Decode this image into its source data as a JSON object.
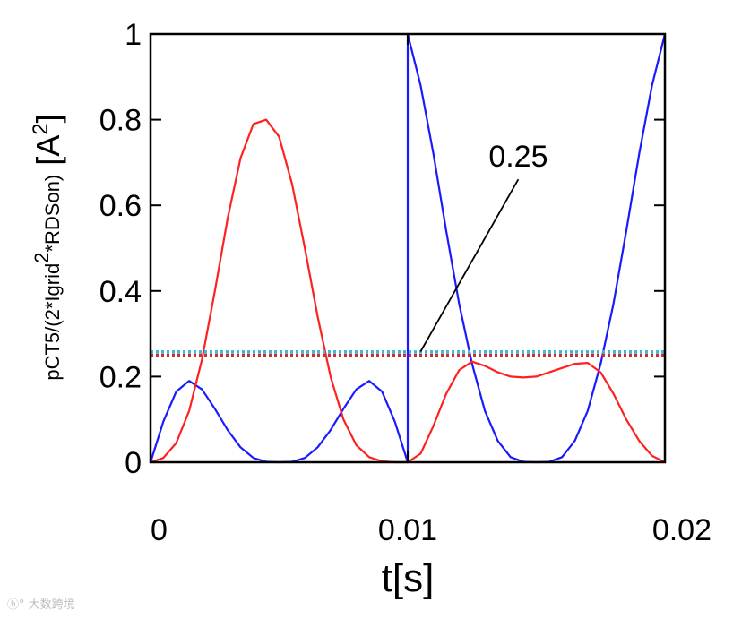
{
  "chart_data": {
    "type": "line",
    "xlabel": "t[s]",
    "ylabel": {
      "prefix": "pCT5/(2*Igrid",
      "superscript": "2",
      "suffix": "*RDSon)",
      "unit_open": " [A",
      "unit_sup": "2",
      "unit_close": "]"
    },
    "xlim": [
      0,
      0.02
    ],
    "ylim": [
      0,
      1
    ],
    "x_ticks": [
      0,
      0.01,
      0.02
    ],
    "x_tick_labels": [
      "0",
      "0.01",
      "0.02"
    ],
    "y_ticks": [
      0,
      0.2,
      0.4,
      0.6,
      0.8,
      1
    ],
    "y_tick_labels": [
      "0",
      "0.2",
      "0.4",
      "0.6",
      "0.8",
      "1"
    ],
    "grid": false,
    "series": [
      {
        "color": "#1a1aff",
        "style": "solid",
        "x": [
          0,
          0.0005,
          0.001,
          0.0015,
          0.002,
          0.0025,
          0.003,
          0.0035,
          0.004,
          0.0045,
          0.005,
          0.0055,
          0.006,
          0.0065,
          0.007,
          0.0075,
          0.008,
          0.0085,
          0.009,
          0.0095,
          0.01,
          0.01,
          0.0105,
          0.011,
          0.0115,
          0.012,
          0.0125,
          0.013,
          0.0135,
          0.014,
          0.0145,
          0.015,
          0.0155,
          0.016,
          0.0165,
          0.017,
          0.0175,
          0.018,
          0.0185,
          0.019,
          0.0195,
          0.02
        ],
        "values": [
          0,
          0.095,
          0.165,
          0.19,
          0.17,
          0.125,
          0.075,
          0.035,
          0.01,
          0.001,
          0,
          0.001,
          0.01,
          0.035,
          0.075,
          0.125,
          0.17,
          0.19,
          0.165,
          0.095,
          0,
          1,
          0.88,
          0.72,
          0.54,
          0.37,
          0.23,
          0.12,
          0.05,
          0.012,
          0.001,
          0,
          0.001,
          0.012,
          0.05,
          0.12,
          0.23,
          0.37,
          0.54,
          0.72,
          0.88,
          1
        ]
      },
      {
        "color": "#ff2020",
        "style": "solid",
        "x": [
          0,
          0.0005,
          0.001,
          0.0015,
          0.002,
          0.0025,
          0.003,
          0.0035,
          0.004,
          0.0045,
          0.005,
          0.0055,
          0.006,
          0.0065,
          0.007,
          0.0075,
          0.008,
          0.0085,
          0.009,
          0.0095,
          0.01,
          0.0105,
          0.011,
          0.0115,
          0.012,
          0.0125,
          0.013,
          0.0135,
          0.014,
          0.0145,
          0.015,
          0.0155,
          0.016,
          0.0165,
          0.017,
          0.0175,
          0.018,
          0.0185,
          0.019,
          0.0195,
          0.02
        ],
        "values": [
          0,
          0.01,
          0.045,
          0.12,
          0.24,
          0.4,
          0.57,
          0.71,
          0.79,
          0.8,
          0.76,
          0.65,
          0.5,
          0.34,
          0.2,
          0.1,
          0.04,
          0.012,
          0.002,
          0,
          0,
          0.02,
          0.085,
          0.16,
          0.215,
          0.235,
          0.225,
          0.21,
          0.2,
          0.198,
          0.2,
          0.21,
          0.22,
          0.23,
          0.232,
          0.21,
          0.16,
          0.1,
          0.05,
          0.015,
          0
        ]
      },
      {
        "color": "#40b8d8",
        "style": "dotted",
        "x": [
          0,
          0.02
        ],
        "values": [
          0.258,
          0.258
        ]
      },
      {
        "color": "#c83232",
        "style": "dotted",
        "x": [
          0,
          0.02
        ],
        "values": [
          0.25,
          0.25
        ]
      }
    ],
    "annotations": [
      {
        "text": "0.25",
        "point": [
          0.0105,
          0.25
        ],
        "label_at": [
          0.0143,
          0.69
        ]
      }
    ]
  },
  "watermark": "ⓑ° 大数跨境"
}
